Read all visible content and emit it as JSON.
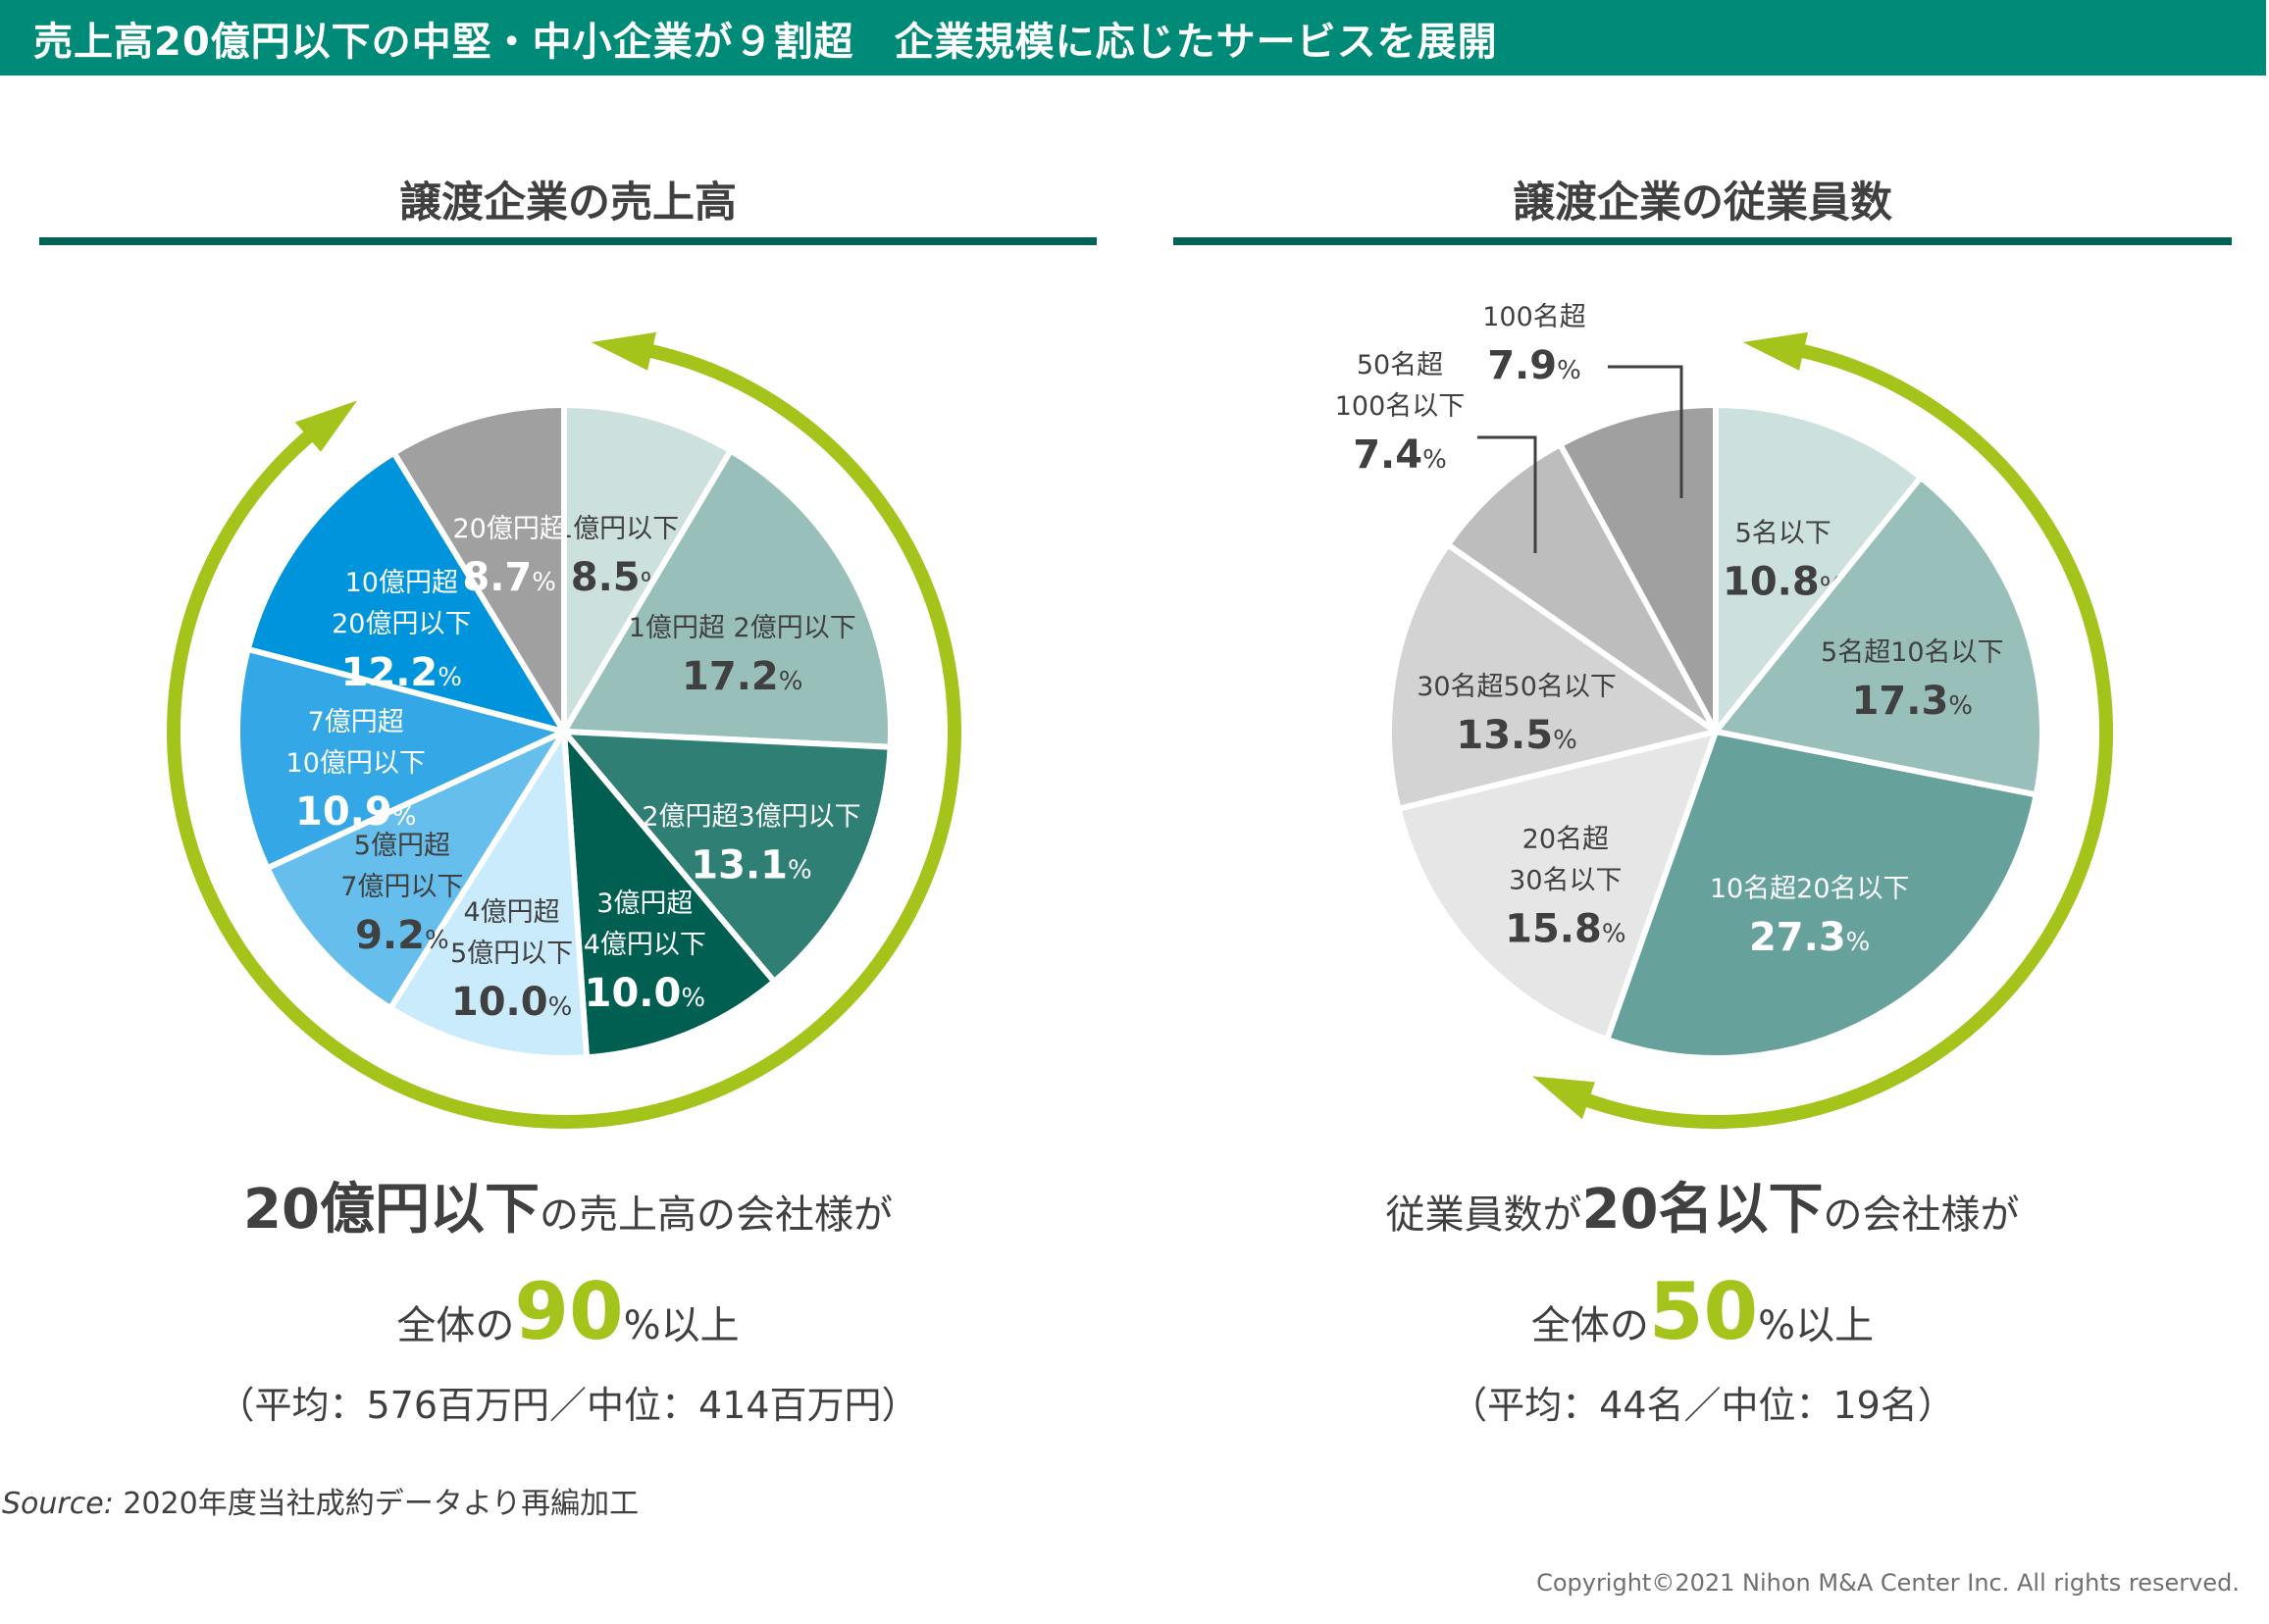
{
  "header": {
    "title": "売上高20億円以下の中堅・中小企業が９割超　企業規模に応じたサービスを展開"
  },
  "chart_data": [
    {
      "type": "pie",
      "title": "譲渡企業の売上高",
      "start": "top",
      "direction": "clockwise",
      "slices": [
        {
          "label": [
            "1億円以下"
          ],
          "value": 8.5,
          "color": "#cce0dd",
          "text_color": "#404040"
        },
        {
          "label": [
            "1億円超 2億円以下"
          ],
          "value": 17.2,
          "color": "#99bfbb",
          "text_color": "#404040"
        },
        {
          "label": [
            "2億円超3億円以下"
          ],
          "value": 13.1,
          "color": "#2f7f74",
          "text_color": "#ffffff"
        },
        {
          "label": [
            "3億円超",
            "4億円以下"
          ],
          "value": 10.0,
          "color": "#005f50",
          "text_color": "#ffffff"
        },
        {
          "label": [
            "4億円超",
            "5億円以下"
          ],
          "value": 10.0,
          "color": "#c9ebfb",
          "text_color": "#404040"
        },
        {
          "label": [
            "5億円超",
            "7億円以下"
          ],
          "value": 9.2,
          "color": "#66beec",
          "text_color": "#404040"
        },
        {
          "label": [
            "7億円超",
            "10億円以下"
          ],
          "value": 10.9,
          "color": "#34a8e6",
          "text_color": "#ffffff"
        },
        {
          "label": [
            "10億円超",
            "20億円以下"
          ],
          "value": 12.2,
          "color": "#0094dd",
          "text_color": "#ffffff"
        },
        {
          "label": [
            "20億円超"
          ],
          "value": 8.7,
          "color": "#a0a0a0",
          "text_color": "#ffffff"
        }
      ],
      "value_suffix": "%",
      "arrow_color": "#a4c41c",
      "arrow_note": "Cycle arrow around slices up to 20億円以下"
    },
    {
      "type": "pie",
      "title": "譲渡企業の従業員数",
      "start": "top",
      "direction": "clockwise",
      "slices": [
        {
          "label": [
            "5名以下"
          ],
          "value": 10.8,
          "color": "#cce0dd",
          "text_color": "#404040"
        },
        {
          "label": [
            "5名超10名以下"
          ],
          "value": 17.3,
          "color": "#99bfbb",
          "text_color": "#404040"
        },
        {
          "label": [
            "10名超20名以下"
          ],
          "value": 27.3,
          "color": "#66a19b",
          "text_color": "#ffffff"
        },
        {
          "label": [
            "20名超",
            "30名以下"
          ],
          "value": 15.8,
          "color": "#e6e6e6",
          "text_color": "#404040"
        },
        {
          "label": [
            "30名超50名以下"
          ],
          "value": 13.5,
          "color": "#d3d3d3",
          "text_color": "#404040"
        },
        {
          "label": [
            "50名超",
            "100名以下"
          ],
          "value": 7.4,
          "color": "#bdbdbd",
          "text_color": "#404040",
          "callout": true
        },
        {
          "label": [
            "100名超"
          ],
          "value": 7.9,
          "color": "#a0a0a0",
          "text_color": "#404040",
          "callout": true
        }
      ],
      "value_suffix": "%",
      "arrow_color": "#a4c41c",
      "arrow_note": "Arrow spanning slices up to 20名以下"
    }
  ],
  "summaries": [
    {
      "bold_part": "20億円以下",
      "line1_prefix": "",
      "line1_suffix": "の売上高の会社様が",
      "line2_prefix": "全体の",
      "highlight": "90",
      "line2_suffix": "%以上",
      "line3": "（平均：576百万円／中位：414百万円）"
    },
    {
      "bold_part": "20名以下",
      "line1_prefix": "従業員数が",
      "line1_suffix": "の会社様が",
      "line2_prefix": "全体の",
      "highlight": "50",
      "line2_suffix": "%以上",
      "line3": "（平均：44名／中位：19名）"
    }
  ],
  "footer": {
    "source_label": "Source:",
    "source_text": " 2020年度当社成約データより再編加工",
    "copyright": "Copyright©2021 Nihon M&A Center Inc. All rights reserved."
  }
}
